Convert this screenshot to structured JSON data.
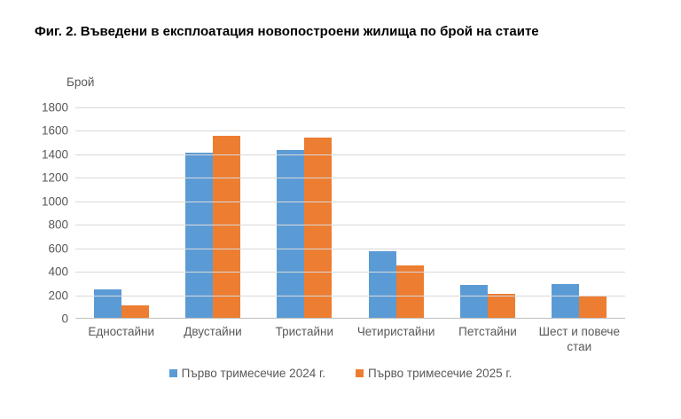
{
  "title": "Фиг. 2. Въведени в експлоатация новопостроени жилища по брой на стаите",
  "chart_data": {
    "type": "bar",
    "y_axis_title": "Брой",
    "categories": [
      "Едностайни",
      "Двустайни",
      "Тристайни",
      "Четиристайни",
      "Петстайни",
      "Шест и повече стаи"
    ],
    "series": [
      {
        "name": "Първо тримесечие 2024 г.",
        "color": "#5b9bd5",
        "values": [
          250,
          1415,
          1435,
          575,
          290,
          295
        ]
      },
      {
        "name": "Първо тримесечие 2025 г.",
        "color": "#ed7d31",
        "values": [
          110,
          1555,
          1540,
          455,
          210,
          200
        ]
      }
    ],
    "ylim": [
      0,
      1800
    ],
    "ytick_step": 200,
    "grid": true,
    "legend_position": "bottom",
    "gridline_color": "#d9d9d9",
    "axisline_color": "#bfbfbf",
    "text_color": "#595959"
  }
}
